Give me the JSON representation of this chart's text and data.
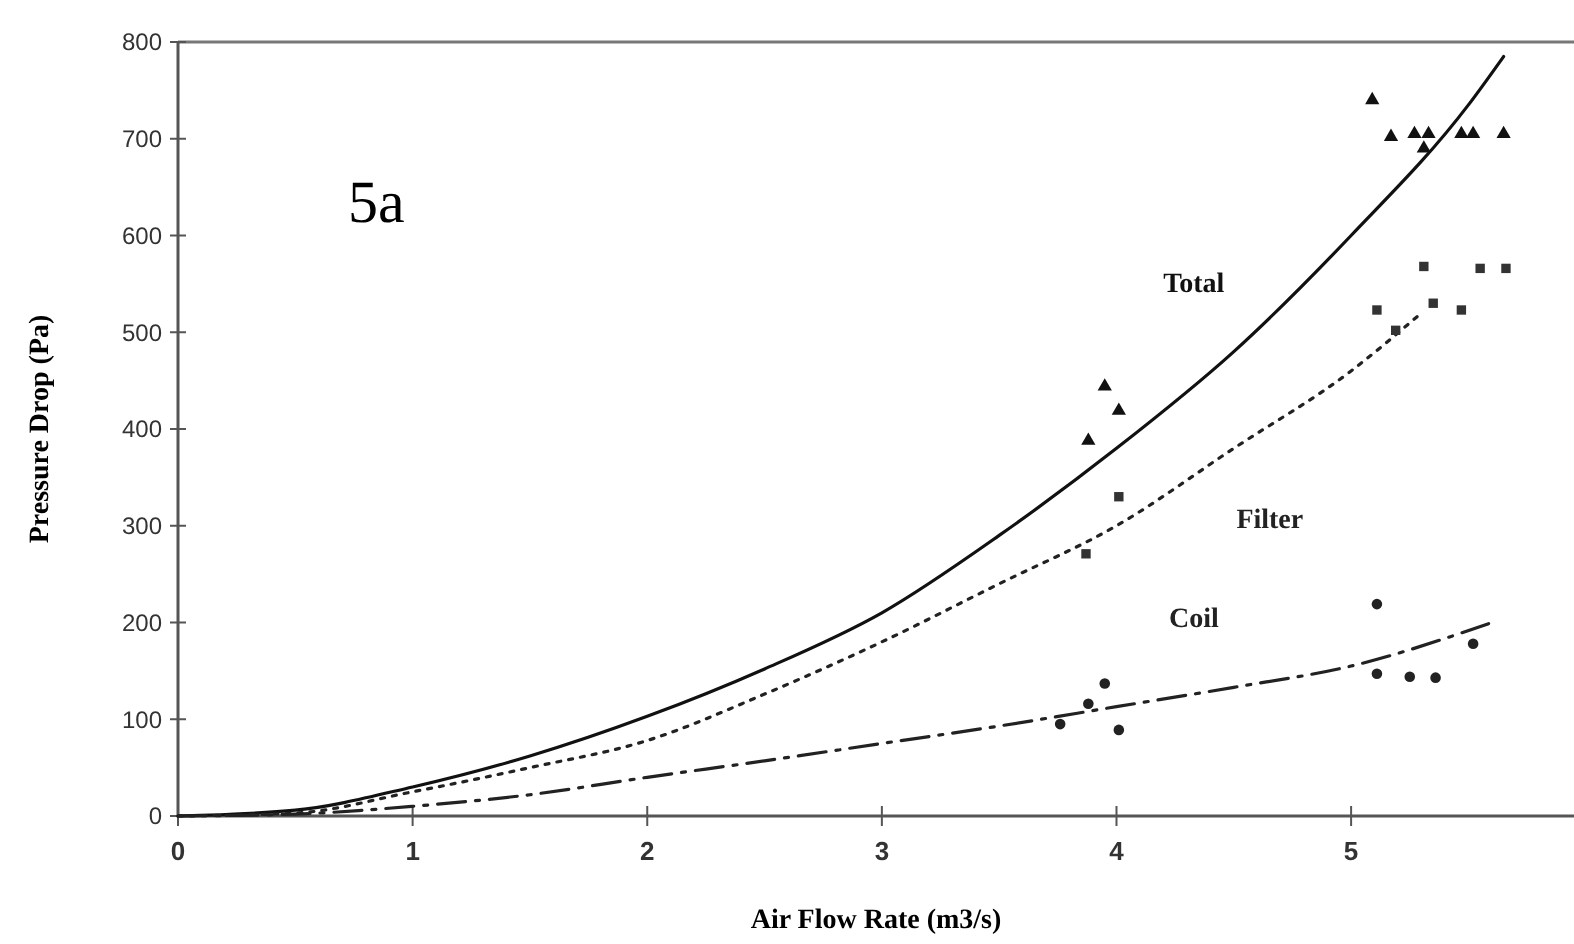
{
  "chart_data": {
    "type": "line",
    "xlabel": "Air Flow Rate (m3/s)",
    "ylabel": "Pressure Drop (Pa)",
    "annotations": [
      "5a"
    ],
    "xlim": [
      0,
      5.95
    ],
    "ylim": [
      0,
      800
    ],
    "xticks": [
      0,
      1,
      2,
      3,
      4,
      5
    ],
    "yticks": [
      0,
      100,
      200,
      300,
      400,
      500,
      600,
      700,
      800
    ],
    "grid": false,
    "series": [
      {
        "name": "Total",
        "color": "#111111",
        "line_style": "solid",
        "x": [
          0,
          0.5,
          1,
          1.5,
          2,
          2.5,
          3,
          3.5,
          4,
          4.5,
          5,
          5.5,
          5.65
        ],
        "values": [
          0,
          6,
          30,
          62,
          103,
          152,
          210,
          290,
          380,
          480,
          600,
          735,
          785
        ]
      },
      {
        "name": "Filter",
        "color": "#222222",
        "line_style": "dotted",
        "x": [
          0,
          0.5,
          1,
          1.5,
          2,
          2.5,
          3,
          3.5,
          4,
          4.5,
          5,
          5.3
        ],
        "values": [
          0,
          3,
          25,
          50,
          78,
          126,
          180,
          240,
          300,
          380,
          460,
          520
        ]
      },
      {
        "name": "Coil",
        "color": "#222222",
        "line_style": "dashed",
        "x": [
          0,
          0.5,
          1,
          1.5,
          2,
          2.5,
          3,
          3.5,
          4,
          4.5,
          5,
          5.6
        ],
        "values": [
          0,
          2,
          10,
          22,
          40,
          57,
          75,
          93,
          113,
          133,
          155,
          200
        ]
      },
      {
        "type": "scatter",
        "marker": "triangle",
        "color": "#111111",
        "x": [
          5.09,
          5.17,
          5.27,
          5.33,
          5.31,
          5.47,
          5.52,
          5.65,
          3.95,
          4.01,
          3.88
        ],
        "values": [
          740,
          702,
          705,
          705,
          690,
          705,
          705,
          705,
          444,
          419,
          388
        ]
      },
      {
        "type": "scatter",
        "marker": "square",
        "color": "#333333",
        "x": [
          5.31,
          5.55,
          5.66,
          5.11,
          5.35,
          5.47,
          5.19,
          4.01,
          3.87
        ],
        "values": [
          568,
          566,
          566,
          523,
          530,
          523,
          502,
          330,
          271
        ]
      },
      {
        "type": "scatter",
        "marker": "circle",
        "color": "#222222",
        "x": [
          3.95,
          3.88,
          3.76,
          4.01,
          5.11,
          5.52,
          5.11,
          5.25,
          5.36
        ],
        "values": [
          137,
          116,
          95,
          89,
          219,
          178,
          147,
          144,
          143
        ]
      }
    ]
  }
}
